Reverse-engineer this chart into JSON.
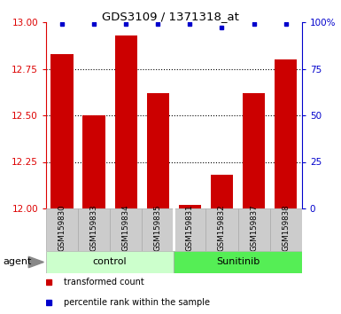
{
  "title": "GDS3109 / 1371318_at",
  "samples": [
    "GSM159830",
    "GSM159833",
    "GSM159834",
    "GSM159835",
    "GSM159831",
    "GSM159832",
    "GSM159837",
    "GSM159838"
  ],
  "red_values": [
    12.83,
    12.5,
    12.93,
    12.62,
    12.02,
    12.18,
    12.62,
    12.8
  ],
  "blue_values": [
    99,
    99,
    99,
    99,
    99,
    97,
    99,
    99
  ],
  "groups": [
    {
      "label": "control",
      "start": 0,
      "end": 4,
      "color": "#ccffcc"
    },
    {
      "label": "Sunitinib",
      "start": 4,
      "end": 8,
      "color": "#55ee55"
    }
  ],
  "ylim_left": [
    12.0,
    13.0
  ],
  "yticks_left": [
    12.0,
    12.25,
    12.5,
    12.75,
    13.0
  ],
  "yticks_right": [
    0,
    25,
    50,
    75,
    100
  ],
  "ylim_right": [
    0,
    100
  ],
  "left_tick_color": "#dd0000",
  "right_tick_color": "#0000cc",
  "bar_color": "#cc0000",
  "dot_color": "#0000cc",
  "agent_label": "agent",
  "legend_items": [
    {
      "color": "#cc0000",
      "label": "transformed count"
    },
    {
      "color": "#0000cc",
      "label": "percentile rank within the sample"
    }
  ],
  "bar_width": 0.7,
  "background_color": "#ffffff",
  "label_area_color": "#cccccc",
  "ytick_labels_right": [
    "0",
    "25",
    "50",
    "75",
    "100%"
  ]
}
